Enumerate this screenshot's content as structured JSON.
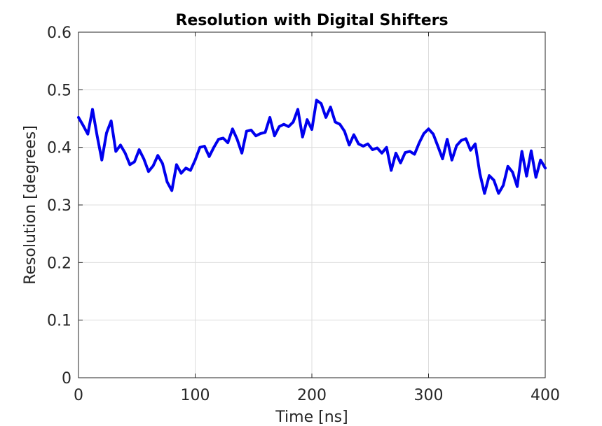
{
  "chart_data": {
    "type": "line",
    "title": "Resolution with Digital Shifters",
    "xlabel": "Time [ns]",
    "ylabel": "Resolution [degrees]",
    "xlim": [
      0,
      400
    ],
    "ylim": [
      0,
      0.6
    ],
    "grid": true,
    "xticks": [
      0,
      100,
      200,
      300,
      400
    ],
    "xtick_labels": [
      "0",
      "100",
      "200",
      "300",
      "400"
    ],
    "yticks": [
      0,
      0.1,
      0.2,
      0.3,
      0.4,
      0.5,
      0.6
    ],
    "ytick_labels": [
      "0",
      "0.1",
      "0.2",
      "0.3",
      "0.4",
      "0.5",
      "0.6"
    ],
    "series": [
      {
        "color": "#0000ee",
        "x": [
          0,
          4,
          8,
          12,
          16,
          20,
          24,
          28,
          32,
          36,
          40,
          44,
          48,
          52,
          56,
          60,
          64,
          68,
          72,
          76,
          80,
          84,
          88,
          92,
          96,
          100,
          104,
          108,
          112,
          116,
          120,
          124,
          128,
          132,
          136,
          140,
          144,
          148,
          152,
          156,
          160,
          164,
          168,
          172,
          176,
          180,
          184,
          188,
          192,
          196,
          200,
          204,
          208,
          212,
          216,
          220,
          224,
          228,
          232,
          236,
          240,
          244,
          248,
          252,
          256,
          260,
          264,
          268,
          272,
          276,
          280,
          284,
          288,
          292,
          296,
          300,
          304,
          308,
          312,
          316,
          320,
          324,
          328,
          332,
          336,
          340,
          344,
          348,
          352,
          356,
          360,
          364,
          368,
          372,
          376,
          380,
          384,
          388,
          392,
          396,
          400
        ],
        "y": [
          0.452,
          0.438,
          0.423,
          0.466,
          0.42,
          0.378,
          0.425,
          0.446,
          0.393,
          0.404,
          0.39,
          0.37,
          0.375,
          0.396,
          0.38,
          0.358,
          0.368,
          0.386,
          0.372,
          0.34,
          0.325,
          0.37,
          0.355,
          0.364,
          0.36,
          0.378,
          0.4,
          0.402,
          0.384,
          0.4,
          0.414,
          0.416,
          0.408,
          0.432,
          0.414,
          0.39,
          0.428,
          0.43,
          0.42,
          0.424,
          0.426,
          0.452,
          0.42,
          0.436,
          0.44,
          0.436,
          0.444,
          0.466,
          0.418,
          0.448,
          0.431,
          0.482,
          0.476,
          0.452,
          0.47,
          0.444,
          0.44,
          0.428,
          0.404,
          0.422,
          0.406,
          0.402,
          0.406,
          0.396,
          0.399,
          0.39,
          0.4,
          0.36,
          0.39,
          0.373,
          0.391,
          0.393,
          0.388,
          0.408,
          0.424,
          0.432,
          0.423,
          0.402,
          0.38,
          0.414,
          0.378,
          0.403,
          0.412,
          0.415,
          0.395,
          0.406,
          0.354,
          0.32,
          0.351,
          0.343,
          0.32,
          0.334,
          0.367,
          0.357,
          0.332,
          0.393,
          0.35,
          0.394,
          0.348,
          0.378,
          0.364
        ]
      }
    ]
  }
}
